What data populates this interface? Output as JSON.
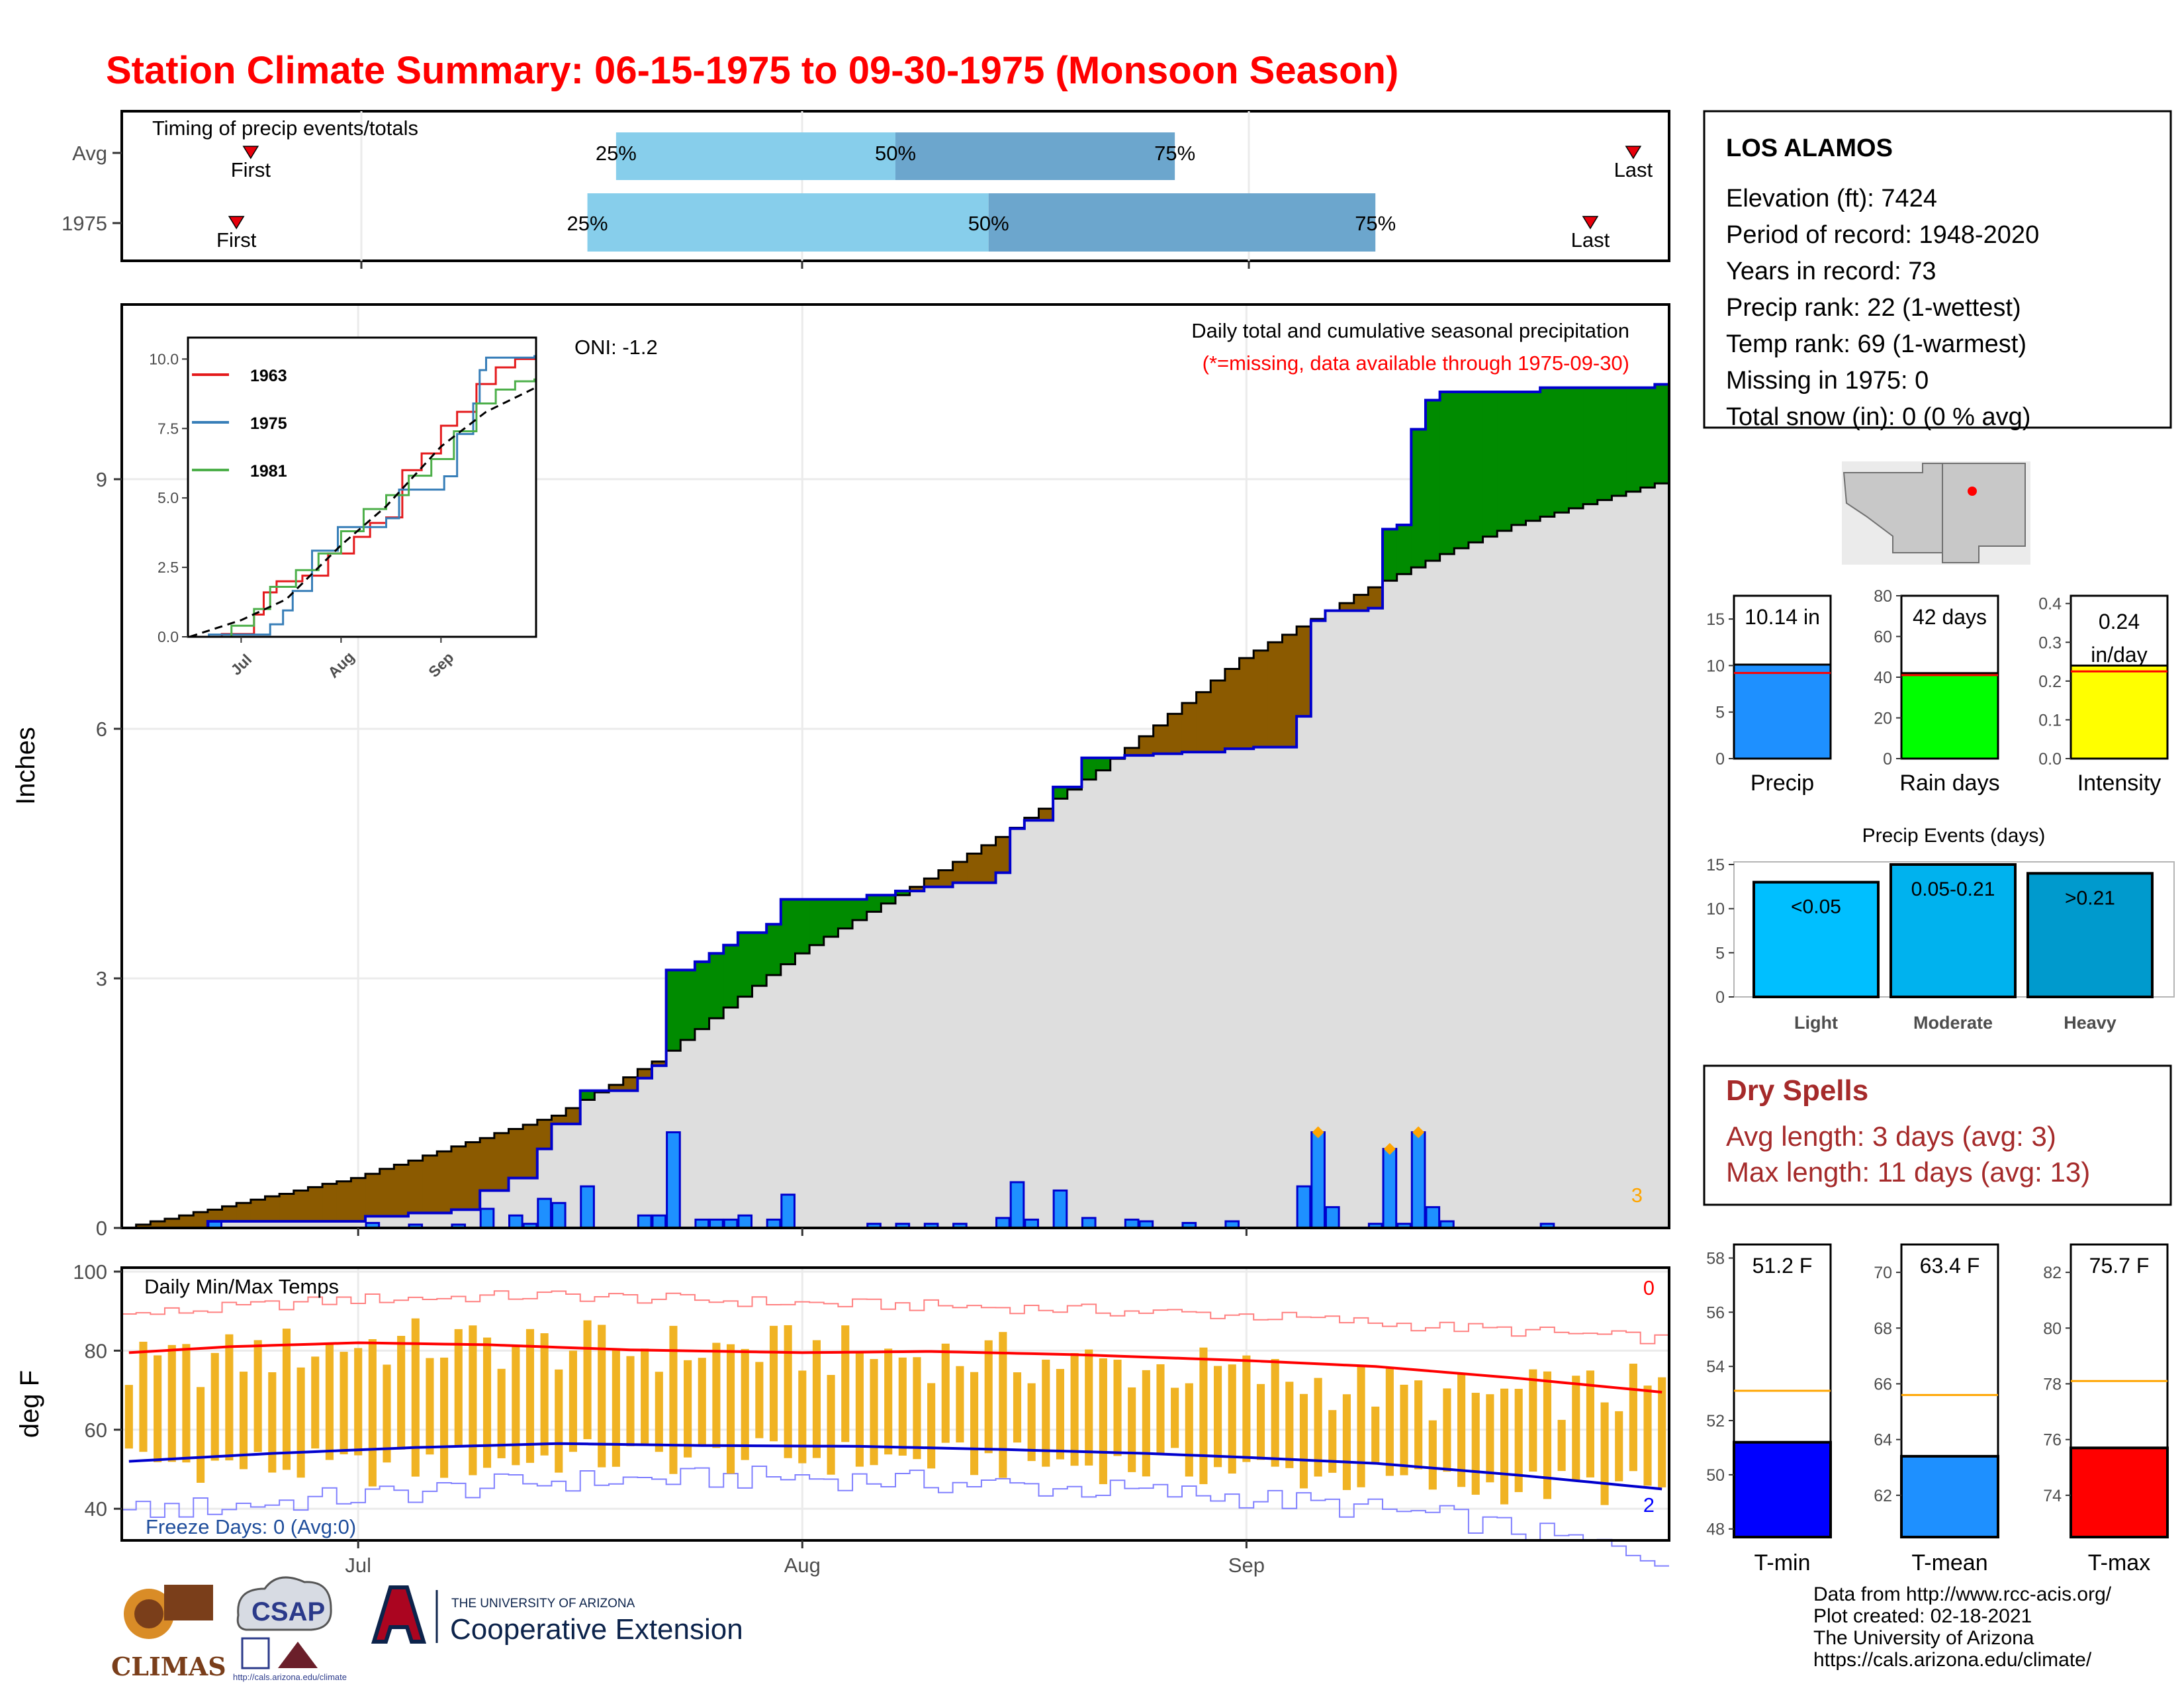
{
  "page": {
    "title": "Station Climate Summary: 06-15-1975 to 09-30-1975 (Monsoon Season)"
  },
  "timing_panel": {
    "title": "Timing of precip events/totals",
    "rows": [
      {
        "label": "Avg",
        "first_label": "First",
        "last_label": "Last",
        "first_day": 8.5,
        "last_day": 105,
        "q25": 34,
        "q50": 53.5,
        "q75": 73,
        "q25_label": "25%",
        "q50_label": "50%",
        "q75_label": "75%"
      },
      {
        "label": "1975",
        "first_label": "First",
        "last_label": "Last",
        "first_day": 7.5,
        "last_day": 102,
        "q25": 32,
        "q50": 60,
        "q75": 87,
        "q25_label": "25%",
        "q50_label": "50%",
        "q75_label": "75%"
      }
    ],
    "colors": {
      "lower": "#87ceeb",
      "upper": "#6ca6cd",
      "marker": "#e8000b"
    }
  },
  "precip_panel": {
    "ylabel": "Inches",
    "y_ticks": [
      "0",
      "3",
      "6",
      "9"
    ],
    "oni": "ONI: -1.2",
    "caption": "Daily total and cumulative seasonal precipitation",
    "missing_note": "(*=missing, data available through 1975-09-30)",
    "corner_count": "3"
  },
  "inset": {
    "y_ticks": [
      "0.0",
      "2.5",
      "5.0",
      "7.5",
      "10.0"
    ],
    "x_ticks": [
      "Jul",
      "Aug",
      "Sep"
    ],
    "legend": [
      {
        "label": "1963",
        "color": "#e41a1c"
      },
      {
        "label": "1975",
        "color": "#377eb8"
      },
      {
        "label": "1981",
        "color": "#4daf4a"
      }
    ]
  },
  "temp_panel": {
    "title": "Daily Min/Max Temps",
    "ylabel": "deg F",
    "y_ticks": [
      "40",
      "60",
      "80",
      "100"
    ],
    "freeze_label": "Freeze Days: 0 (Avg:0)",
    "count_top": "0",
    "count_bottom": "2",
    "x_ticks": [
      "Jul",
      "Aug",
      "Sep"
    ]
  },
  "station": {
    "name": "LOS ALAMOS",
    "lines": [
      "Elevation (ft): 7424",
      "Period of record: 1948-2020",
      "Years in record: 73",
      "Precip rank: 22 (1-wettest)",
      "Temp rank: 69 (1-warmest)",
      "Missing in 1975: 0",
      "Total snow (in): 0 (0 % avg)"
    ]
  },
  "summary_bars": [
    {
      "label": "Precip",
      "value_label": "10.14 in",
      "y_ticks": [
        "0",
        "5",
        "10",
        "15"
      ],
      "ymax": 17.5,
      "value": 10.1,
      "avg": 9.2,
      "color": "#1e90ff"
    },
    {
      "label": "Rain days",
      "value_label": "42 days",
      "y_ticks": [
        "0",
        "20",
        "40",
        "60",
        "80"
      ],
      "ymax": 80,
      "value": 42,
      "avg": 41,
      "color": "#00ff00"
    },
    {
      "label": "Intensity",
      "value_label": "0.24 in/day",
      "value_label_line1": "0.24",
      "value_label_line2": "in/day",
      "y_ticks": [
        "0.0",
        "0.1",
        "0.2",
        "0.3",
        "0.4"
      ],
      "ymax": 0.42,
      "value": 0.24,
      "avg": 0.225,
      "color": "#ffff00"
    }
  ],
  "events": {
    "title": "Precip Events (days)",
    "y_ticks": [
      "0",
      "5",
      "10",
      "15"
    ],
    "bars": [
      {
        "label": "Light",
        "range": "<0.05",
        "value": 13,
        "color": "#00bfff"
      },
      {
        "label": "Moderate",
        "range": "0.05-0.21",
        "value": 15,
        "color": "#00b2ee"
      },
      {
        "label": "Heavy",
        "range": ">0.21",
        "value": 14,
        "color": "#009acd"
      }
    ]
  },
  "dry_spells": {
    "title": "Dry Spells",
    "lines": [
      "Avg length: 3 days (avg: 3)",
      "Max length: 11 days (avg: 13)"
    ],
    "color": "#a52a2a"
  },
  "temp_bars": [
    {
      "label": "T-min",
      "value_label": "51.2 F",
      "y_ticks": [
        "48",
        "50",
        "52",
        "54",
        "56",
        "58"
      ],
      "ymin": 47.7,
      "ymax": 58.5,
      "value": 51.2,
      "avg": 53.1,
      "color": "#0000ff"
    },
    {
      "label": "T-mean",
      "value_label": "63.4 F",
      "y_ticks": [
        "62",
        "64",
        "66",
        "68",
        "70"
      ],
      "ymin": 60.5,
      "ymax": 71,
      "value": 63.4,
      "avg": 65.6,
      "color": "#1e90ff"
    },
    {
      "label": "T-max",
      "value_label": "75.7 F",
      "y_ticks": [
        "74",
        "76",
        "78",
        "80",
        "82"
      ],
      "ymin": 72.5,
      "ymax": 83,
      "value": 75.7,
      "avg": 78.1,
      "color": "#ff0000"
    }
  ],
  "logos": {
    "climas": "CLIMAS",
    "csap": "CSAP",
    "csap_url": "http://cals.arizona.edu/climate",
    "ua_top": "THE UNIVERSITY OF ARIZONA",
    "ua_bottom": "Cooperative Extension"
  },
  "credits": [
    "Data from http://www.rcc-acis.org/",
    "Plot created: 02-18-2021",
    "The University of Arizona",
    "https://cals.arizona.edu/climate/"
  ],
  "chart_data": {
    "type": "area",
    "title": "Daily total and cumulative seasonal precipitation",
    "ylabel": "Inches",
    "ylim": [
      0,
      11.1
    ],
    "x_start": "1975-06-15",
    "x_end": "1975-09-30",
    "x_ticks": [
      "Jul",
      "Aug",
      "Sep"
    ],
    "series": [
      {
        "name": "1975",
        "cum_points": [
          [
            "1975-06-21",
            0.08
          ],
          [
            "1975-07-02",
            0.14
          ],
          [
            "1975-07-05",
            0.18
          ],
          [
            "1975-07-08",
            0.22
          ],
          [
            "1975-07-10",
            0.45
          ],
          [
            "1975-07-12",
            0.6
          ],
          [
            "1975-07-14",
            0.95
          ],
          [
            "1975-07-15",
            1.25
          ],
          [
            "1975-07-17",
            1.65
          ],
          [
            "1975-07-21",
            1.8
          ],
          [
            "1975-07-22",
            1.95
          ],
          [
            "1975-07-23",
            3.1
          ],
          [
            "1975-07-25",
            3.2
          ],
          [
            "1975-07-26",
            3.3
          ],
          [
            "1975-07-27",
            3.4
          ],
          [
            "1975-07-28",
            3.55
          ],
          [
            "1975-07-30",
            3.65
          ],
          [
            "1975-07-31",
            3.95
          ],
          [
            "1975-08-06",
            4.0
          ],
          [
            "1975-08-08",
            4.05
          ],
          [
            "1975-08-10",
            4.1
          ],
          [
            "1975-08-12",
            4.15
          ],
          [
            "1975-08-15",
            4.27
          ],
          [
            "1975-08-16",
            4.8
          ],
          [
            "1975-08-17",
            4.9
          ],
          [
            "1975-08-19",
            5.3
          ],
          [
            "1975-08-21",
            5.65
          ],
          [
            "1975-08-24",
            5.68
          ],
          [
            "1975-08-26",
            5.7
          ],
          [
            "1975-08-28",
            5.72
          ],
          [
            "1975-08-31",
            5.76
          ],
          [
            "1975-09-02",
            5.78
          ],
          [
            "1975-09-05",
            6.15
          ],
          [
            "1975-09-06",
            7.3
          ],
          [
            "1975-09-07",
            7.42
          ],
          [
            "1975-09-10",
            7.45
          ],
          [
            "1975-09-11",
            8.4
          ],
          [
            "1975-09-12",
            8.45
          ],
          [
            "1975-09-13",
            9.6
          ],
          [
            "1975-09-14",
            9.95
          ],
          [
            "1975-09-15",
            10.05
          ],
          [
            "1975-09-22",
            10.1
          ],
          [
            "1975-09-30",
            10.14
          ]
        ]
      },
      {
        "name": "Avg",
        "cum_points": [
          [
            "1975-06-15",
            0.0
          ],
          [
            "1975-07-01",
            0.6
          ],
          [
            "1975-07-15",
            1.35
          ],
          [
            "1975-07-22",
            2.0
          ],
          [
            "1975-08-01",
            3.3
          ],
          [
            "1975-08-08",
            4.0
          ],
          [
            "1975-08-15",
            4.7
          ],
          [
            "1975-08-22",
            5.5
          ],
          [
            "1975-09-01",
            6.85
          ],
          [
            "1975-09-10",
            7.7
          ],
          [
            "1975-09-15",
            8.1
          ],
          [
            "1975-09-20",
            8.45
          ],
          [
            "1975-09-30",
            8.95
          ]
        ]
      }
    ],
    "daily_bars": [
      [
        "1975-06-21",
        0.08
      ],
      [
        "1975-07-02",
        0.06
      ],
      [
        "1975-07-05",
        0.04
      ],
      [
        "1975-07-08",
        0.04
      ],
      [
        "1975-07-10",
        0.23
      ],
      [
        "1975-07-12",
        0.15
      ],
      [
        "1975-07-13",
        0.05
      ],
      [
        "1975-07-14",
        0.35
      ],
      [
        "1975-07-15",
        0.3
      ],
      [
        "1975-07-17",
        0.5
      ],
      [
        "1975-07-21",
        0.15
      ],
      [
        "1975-07-22",
        0.15
      ],
      [
        "1975-07-23",
        1.15
      ],
      [
        "1975-07-25",
        0.1
      ],
      [
        "1975-07-26",
        0.1
      ],
      [
        "1975-07-27",
        0.1
      ],
      [
        "1975-07-28",
        0.15
      ],
      [
        "1975-07-30",
        0.1
      ],
      [
        "1975-07-31",
        0.4
      ],
      [
        "1975-08-06",
        0.05
      ],
      [
        "1975-08-08",
        0.05
      ],
      [
        "1975-08-10",
        0.05
      ],
      [
        "1975-08-12",
        0.05
      ],
      [
        "1975-08-15",
        0.12
      ],
      [
        "1975-08-16",
        0.55
      ],
      [
        "1975-08-17",
        0.1
      ],
      [
        "1975-08-19",
        0.45
      ],
      [
        "1975-08-21",
        0.12
      ],
      [
        "1975-08-24",
        0.1
      ],
      [
        "1975-08-25",
        0.08
      ],
      [
        "1975-08-28",
        0.06
      ],
      [
        "1975-08-31",
        0.08
      ],
      [
        "1975-09-05",
        0.5
      ],
      [
        "1975-09-06",
        1.15
      ],
      [
        "1975-09-07",
        0.25
      ],
      [
        "1975-09-10",
        0.05
      ],
      [
        "1975-09-11",
        0.95
      ],
      [
        "1975-09-12",
        0.05
      ],
      [
        "1975-09-13",
        1.15
      ],
      [
        "1975-09-14",
        0.25
      ],
      [
        "1975-09-15",
        0.08
      ],
      [
        "1975-09-22",
        0.05
      ]
    ],
    "extreme_markers": [
      "1975-09-06",
      "1975-09-11",
      "1975-09-13"
    ],
    "inset_series": [
      {
        "name": "1963",
        "points": [
          [
            "1975-06-15",
            0.0
          ],
          [
            "1975-06-25",
            0.1
          ],
          [
            "1975-07-05",
            0.8
          ],
          [
            "1975-07-08",
            1.6
          ],
          [
            "1975-07-12",
            2.0
          ],
          [
            "1975-07-20",
            2.2
          ],
          [
            "1975-07-28",
            3.0
          ],
          [
            "1975-08-05",
            3.6
          ],
          [
            "1975-08-10",
            4.1
          ],
          [
            "1975-08-15",
            4.3
          ],
          [
            "1975-08-20",
            6.0
          ],
          [
            "1975-08-26",
            6.6
          ],
          [
            "1975-09-01",
            7.6
          ],
          [
            "1975-09-06",
            8.1
          ],
          [
            "1975-09-12",
            9.1
          ],
          [
            "1975-09-18",
            9.7
          ],
          [
            "1975-09-24",
            10.0
          ],
          [
            "1975-09-30",
            10.1
          ]
        ]
      },
      {
        "name": "1975",
        "points": [
          [
            "1975-06-15",
            0.0
          ],
          [
            "1975-06-21",
            0.08
          ],
          [
            "1975-07-10",
            0.45
          ],
          [
            "1975-07-14",
            0.95
          ],
          [
            "1975-07-17",
            1.65
          ],
          [
            "1975-07-23",
            3.1
          ],
          [
            "1975-07-31",
            3.95
          ],
          [
            "1975-08-15",
            4.27
          ],
          [
            "1975-08-19",
            5.3
          ],
          [
            "1975-09-02",
            5.78
          ],
          [
            "1975-09-06",
            7.3
          ],
          [
            "1975-09-11",
            8.4
          ],
          [
            "1975-09-13",
            9.6
          ],
          [
            "1975-09-15",
            10.05
          ],
          [
            "1975-09-30",
            10.14
          ]
        ]
      },
      {
        "name": "1981",
        "points": [
          [
            "1975-06-15",
            0.0
          ],
          [
            "1975-06-28",
            0.4
          ],
          [
            "1975-07-05",
            1.0
          ],
          [
            "1975-07-10",
            1.8
          ],
          [
            "1975-07-18",
            2.4
          ],
          [
            "1975-07-25",
            3.0
          ],
          [
            "1975-08-01",
            3.8
          ],
          [
            "1975-08-08",
            4.6
          ],
          [
            "1975-08-15",
            5.1
          ],
          [
            "1975-08-22",
            5.8
          ],
          [
            "1975-08-29",
            6.4
          ],
          [
            "1975-09-05",
            7.4
          ],
          [
            "1975-09-12",
            8.4
          ],
          [
            "1975-09-18",
            8.9
          ],
          [
            "1975-09-24",
            9.2
          ],
          [
            "1975-09-30",
            9.3
          ]
        ]
      },
      {
        "name": "Avg",
        "points": [
          [
            "1975-06-15",
            0.0
          ],
          [
            "1975-07-01",
            0.6
          ],
          [
            "1975-07-15",
            1.35
          ],
          [
            "1975-08-01",
            3.3
          ],
          [
            "1975-08-15",
            4.7
          ],
          [
            "1975-09-01",
            6.85
          ],
          [
            "1975-09-15",
            8.1
          ],
          [
            "1975-09-30",
            8.95
          ]
        ]
      }
    ],
    "temperature": {
      "title": "Daily Min/Max Temps",
      "ylabel": "deg F",
      "ylim": [
        32,
        101
      ],
      "freeze_threshold": 32,
      "avg_max_points": [
        [
          "1975-06-15",
          79.5
        ],
        [
          "1975-06-22",
          81.0
        ],
        [
          "1975-07-01",
          82.0
        ],
        [
          "1975-07-10",
          81.5
        ],
        [
          "1975-07-20",
          80.2
        ],
        [
          "1975-08-01",
          79.5
        ],
        [
          "1975-08-10",
          79.8
        ],
        [
          "1975-08-20",
          79.0
        ],
        [
          "1975-09-01",
          77.5
        ],
        [
          "1975-09-10",
          76.0
        ],
        [
          "1975-09-20",
          73.0
        ],
        [
          "1975-09-30",
          69.5
        ]
      ],
      "avg_min_points": [
        [
          "1975-06-15",
          52.0
        ],
        [
          "1975-06-25",
          54.0
        ],
        [
          "1975-07-05",
          55.5
        ],
        [
          "1975-07-15",
          56.5
        ],
        [
          "1975-07-25",
          56.0
        ],
        [
          "1975-08-05",
          55.8
        ],
        [
          "1975-08-15",
          55.0
        ],
        [
          "1975-08-25",
          54.0
        ],
        [
          "1975-09-01",
          53.0
        ],
        [
          "1975-09-10",
          51.5
        ],
        [
          "1975-09-20",
          48.5
        ],
        [
          "1975-09-30",
          45.0
        ]
      ],
      "record_max_points": [
        [
          "1975-06-15",
          89.0
        ],
        [
          "1975-07-01",
          93.0
        ],
        [
          "1975-07-15",
          94.0
        ],
        [
          "1975-08-01",
          92.0
        ],
        [
          "1975-08-15",
          91.0
        ],
        [
          "1975-09-01",
          89.0
        ],
        [
          "1975-09-15",
          86.0
        ],
        [
          "1975-09-30",
          83.0
        ]
      ],
      "record_min_points": [
        [
          "1975-06-15",
          39.0
        ],
        [
          "1975-07-01",
          43.0
        ],
        [
          "1975-07-15",
          47.0
        ],
        [
          "1975-08-01",
          48.0
        ],
        [
          "1975-08-15",
          46.0
        ],
        [
          "1975-09-01",
          43.0
        ],
        [
          "1975-09-15",
          38.0
        ],
        [
          "1975-09-30",
          28.0
        ]
      ],
      "daily_min_points": [
        [
          "1975-06-15",
          52.0
        ],
        [
          "1975-07-01",
          50.0
        ],
        [
          "1975-07-15",
          53.0
        ],
        [
          "1975-08-01",
          53.0
        ],
        [
          "1975-08-15",
          52.0
        ],
        [
          "1975-09-01",
          50.0
        ],
        [
          "1975-09-15",
          46.0
        ],
        [
          "1975-09-30",
          45.0
        ]
      ],
      "daily_max_points": [
        [
          "1975-06-15",
          75.0
        ],
        [
          "1975-07-01",
          82.0
        ],
        [
          "1975-07-15",
          81.0
        ],
        [
          "1975-08-01",
          80.0
        ],
        [
          "1975-08-15",
          78.0
        ],
        [
          "1975-09-01",
          74.0
        ],
        [
          "1975-09-15",
          68.0
        ],
        [
          "1975-09-30",
          70.0
        ]
      ]
    }
  }
}
